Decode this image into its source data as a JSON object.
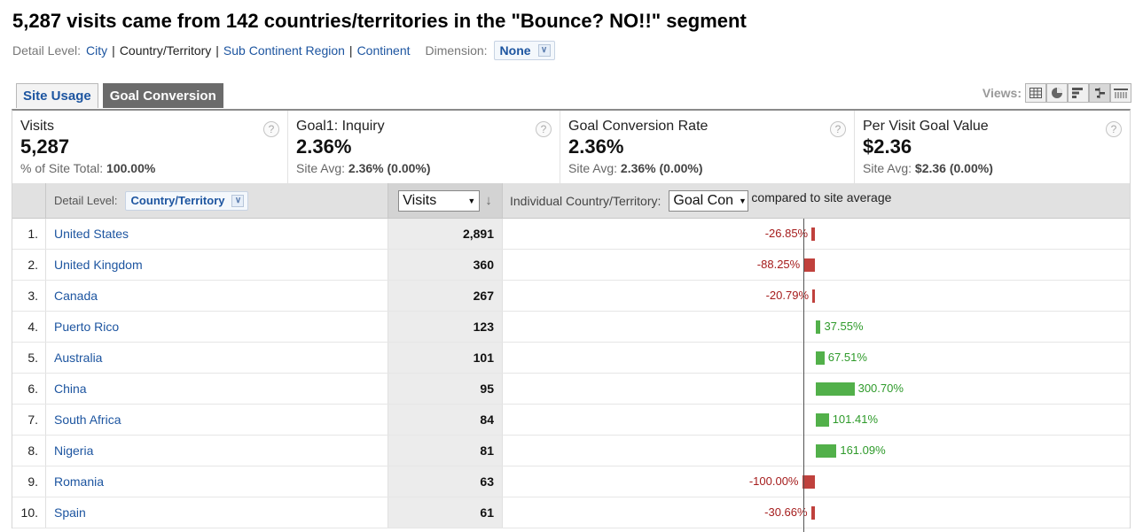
{
  "title": "5,287 visits came from 142 countries/territories in the \"Bounce? NO!!\" segment",
  "detail_level": {
    "label": "Detail Level:",
    "links": [
      "City",
      "Country/Territory",
      "Sub Continent Region",
      "Continent"
    ],
    "separator": "|"
  },
  "dimension": {
    "label": "Dimension:",
    "value": "None"
  },
  "tabs": [
    {
      "label": "Site Usage",
      "active": false
    },
    {
      "label": "Goal Conversion",
      "active": true
    }
  ],
  "views": {
    "label": "Views:",
    "icons": [
      "table-view-icon",
      "pie-view-icon",
      "bar-view-icon",
      "comparison-view-icon",
      "pivot-view-icon"
    ]
  },
  "summary": [
    {
      "name": "Visits",
      "value": "5,287",
      "sub_prefix": "% of Site Total:",
      "sub_value": "100.00%"
    },
    {
      "name": "Goal1: Inquiry",
      "value": "2.36%",
      "sub_prefix": "Site Avg:",
      "sub_value": "2.36% (0.00%)"
    },
    {
      "name": "Goal Conversion Rate",
      "value": "2.36%",
      "sub_prefix": "Site Avg:",
      "sub_value": "2.36% (0.00%)"
    },
    {
      "name": "Per Visit Goal Value",
      "value": "$2.36",
      "sub_prefix": "Site Avg:",
      "sub_value": "$2.36 (0.00%)"
    }
  ],
  "table": {
    "detail_label": "Detail Level:",
    "detail_value": "Country/Territory",
    "metric_select": "Visits",
    "compare_label": "Individual Country/Territory:",
    "compare_select": "Goal Con",
    "compare_suffix": "compared to site average",
    "rows": [
      {
        "rank": "1.",
        "name": "United States",
        "visits": "2,891",
        "pct_label": "-26.85%",
        "pct": -26.85
      },
      {
        "rank": "2.",
        "name": "United Kingdom",
        "visits": "360",
        "pct_label": "-88.25%",
        "pct": -88.25
      },
      {
        "rank": "3.",
        "name": "Canada",
        "visits": "267",
        "pct_label": "-20.79%",
        "pct": -20.79
      },
      {
        "rank": "4.",
        "name": "Puerto Rico",
        "visits": "123",
        "pct_label": "37.55%",
        "pct": 37.55
      },
      {
        "rank": "5.",
        "name": "Australia",
        "visits": "101",
        "pct_label": "67.51%",
        "pct": 67.51
      },
      {
        "rank": "6.",
        "name": "China",
        "visits": "95",
        "pct_label": "300.70%",
        "pct": 300.7
      },
      {
        "rank": "7.",
        "name": "South Africa",
        "visits": "84",
        "pct_label": "101.41%",
        "pct": 101.41
      },
      {
        "rank": "8.",
        "name": "Nigeria",
        "visits": "81",
        "pct_label": "161.09%",
        "pct": 161.09
      },
      {
        "rank": "9.",
        "name": "Romania",
        "visits": "63",
        "pct_label": "-100.00%",
        "pct": -100.0
      },
      {
        "rank": "10.",
        "name": "Spain",
        "visits": "61",
        "pct_label": "-30.66%",
        "pct": -30.66
      }
    ]
  },
  "colors": {
    "link": "#1d55a0",
    "negative": "#c0413d",
    "positive": "#52b04a"
  }
}
